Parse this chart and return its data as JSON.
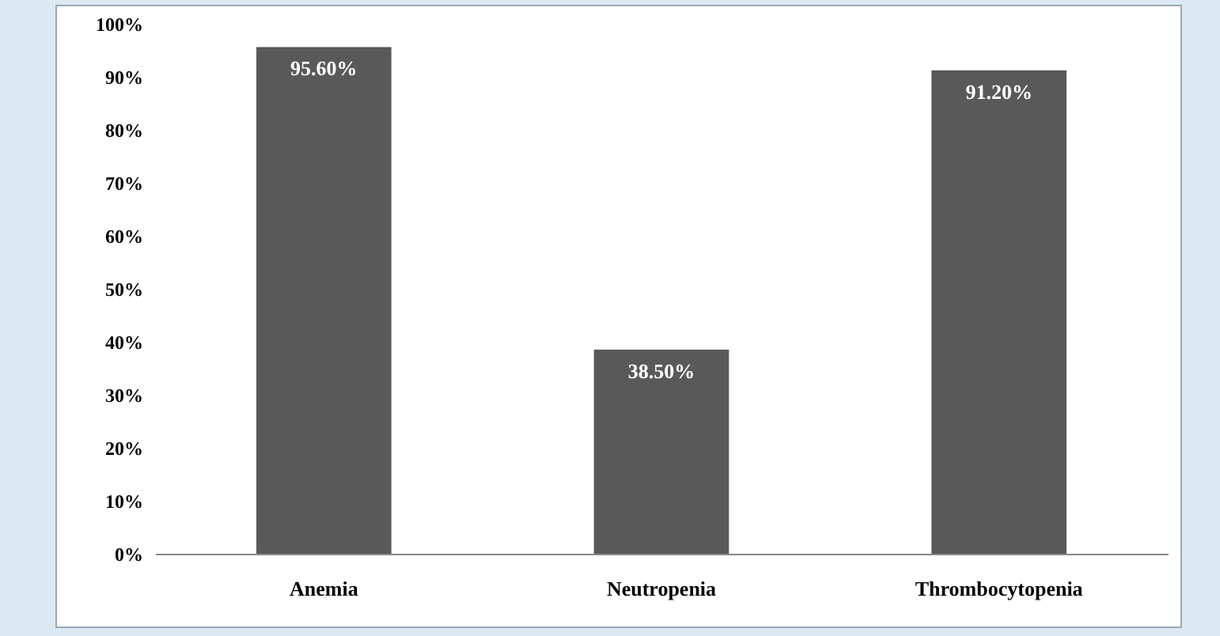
{
  "chart_data": {
    "type": "bar",
    "categories": [
      "Anemia",
      "Neutropenia",
      "Thrombocytopenia"
    ],
    "values": [
      95.6,
      38.5,
      91.2
    ],
    "color": "#595959",
    "value_labels": [
      "95.60%",
      "38.50%",
      "91.20%"
    ],
    "ylim": [
      0,
      100
    ],
    "yticks": [
      {
        "value": 0,
        "label": "0%"
      },
      {
        "value": 10,
        "label": "10%"
      },
      {
        "value": 20,
        "label": "20%"
      },
      {
        "value": 30,
        "label": "30%"
      },
      {
        "value": 40,
        "label": "40%"
      },
      {
        "value": 50,
        "label": "50%"
      },
      {
        "value": 60,
        "label": "60%"
      },
      {
        "value": 70,
        "label": "70%"
      },
      {
        "value": 80,
        "label": "80%"
      },
      {
        "value": 90,
        "label": "90%"
      },
      {
        "value": 100,
        "label": "100%"
      }
    ],
    "grid": false
  }
}
